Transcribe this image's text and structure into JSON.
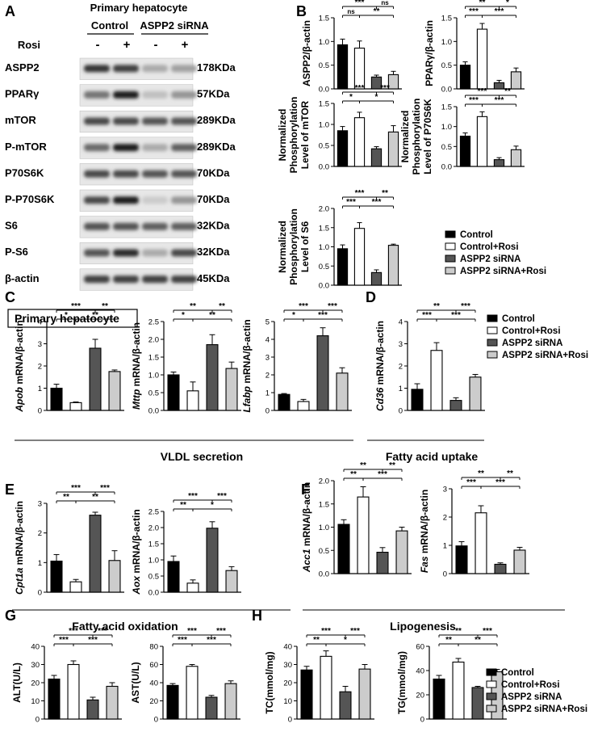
{
  "panels": {
    "A": "A",
    "B": "B",
    "C": "C",
    "D": "D",
    "E": "E",
    "F": "F",
    "G": "G",
    "H": "H"
  },
  "colors": {
    "control": "#000000",
    "control_rosi": "#ffffff",
    "siRNA": "#555555",
    "siRNA_rosi": "#cccccc"
  },
  "legend": [
    "Control",
    "Control+Rosi",
    "ASPP2 siRNA",
    "ASPP2 siRNA+Rosi"
  ],
  "blot": {
    "title": "Primary hepatocyte",
    "groups": [
      "Control",
      "ASPP2 siRNA"
    ],
    "rosi_label": "Rosi",
    "rosi_signs": [
      "-",
      "+",
      "-",
      "+"
    ],
    "rows": [
      {
        "name": "ASPP2",
        "size": "178KDa",
        "intensity": [
          0.85,
          0.8,
          0.3,
          0.35
        ]
      },
      {
        "name": "PPARγ",
        "size": "57KDa",
        "intensity": [
          0.55,
          0.95,
          0.2,
          0.4
        ]
      },
      {
        "name": "mTOR",
        "size": "289KDa",
        "intensity": [
          0.75,
          0.75,
          0.7,
          0.7
        ]
      },
      {
        "name": "P-mTOR",
        "size": "289KDa",
        "intensity": [
          0.6,
          0.95,
          0.3,
          0.65
        ]
      },
      {
        "name": "P70S6K",
        "size": "70KDa",
        "intensity": [
          0.75,
          0.75,
          0.7,
          0.7
        ]
      },
      {
        "name": "P-P70S6K",
        "size": "70KDa",
        "intensity": [
          0.75,
          0.95,
          0.15,
          0.4
        ]
      },
      {
        "name": "S6",
        "size": "32KDa",
        "intensity": [
          0.7,
          0.7,
          0.65,
          0.65
        ]
      },
      {
        "name": "P-S6",
        "size": "32KDa",
        "intensity": [
          0.7,
          0.9,
          0.3,
          0.75
        ]
      },
      {
        "name": "β-actin",
        "size": "45KDa",
        "intensity": [
          0.8,
          0.8,
          0.8,
          0.8
        ]
      }
    ]
  },
  "section_titles": {
    "C_box": "Primary hepatocyte",
    "vldl": "VLDL secretion",
    "uptake": "Fatty acid uptake",
    "oxidation": "Fatty acid oxidation",
    "lipogenesis": "Lipogenesis"
  },
  "chart_data": [
    {
      "id": "B1",
      "type": "bar",
      "ylabel": "ASPP2/β-actin",
      "ylim": [
        0,
        1.5
      ],
      "ticks": [
        "0.0",
        "0.5",
        "1.0",
        "1.5"
      ],
      "tickvals": [
        0,
        0.5,
        1.0,
        1.5
      ],
      "values": [
        0.93,
        0.86,
        0.25,
        0.3
      ],
      "errors": [
        0.12,
        0.15,
        0.04,
        0.07
      ],
      "sig": [
        [
          "***",
          "ns"
        ],
        [
          "ns",
          "**"
        ]
      ]
    },
    {
      "id": "B2",
      "type": "bar",
      "ylabel": "PPARγ/β-actin",
      "ylim": [
        0,
        1.5
      ],
      "ticks": [
        "0.0",
        "0.5",
        "1.0",
        "1.5"
      ],
      "tickvals": [
        0,
        0.5,
        1.0,
        1.5
      ],
      "values": [
        0.5,
        1.26,
        0.13,
        0.36
      ],
      "errors": [
        0.07,
        0.12,
        0.05,
        0.08
      ],
      "sig": [
        [
          "**",
          "*"
        ],
        [
          "***",
          "***"
        ]
      ]
    },
    {
      "id": "B3",
      "type": "bar",
      "ylabel": "Normalized Phosphorylation Level of mTOR",
      "ylim": [
        0,
        1.5
      ],
      "ticks": [
        "0.0",
        "0.5",
        "1.0",
        "1.5"
      ],
      "tickvals": [
        0,
        0.5,
        1.0,
        1.5
      ],
      "values": [
        0.85,
        1.16,
        0.42,
        0.82
      ],
      "errors": [
        0.1,
        0.13,
        0.05,
        0.15
      ],
      "sig": [
        [
          "***",
          "***"
        ],
        [
          "*",
          "*"
        ]
      ]
    },
    {
      "id": "B4",
      "type": "bar",
      "ylabel": "Normalized Phosphorylation Level of P70S6K",
      "ylim": [
        0,
        1.5
      ],
      "ticks": [
        "0.0",
        "0.5",
        "1.0",
        "1.5"
      ],
      "tickvals": [
        0,
        0.5,
        1.0,
        1.5
      ],
      "values": [
        0.76,
        1.25,
        0.17,
        0.42
      ],
      "errors": [
        0.08,
        0.12,
        0.05,
        0.09
      ],
      "sig": [
        [
          "***",
          "**"
        ],
        [
          "***",
          "***"
        ]
      ]
    },
    {
      "id": "B5",
      "type": "bar",
      "ylabel": "Normalized Phosphorylation Level of S6",
      "ylim": [
        0,
        2.0
      ],
      "ticks": [
        "0.0",
        "0.5",
        "1.0",
        "1.5",
        "2.0"
      ],
      "tickvals": [
        0,
        0.5,
        1.0,
        1.5,
        2.0
      ],
      "values": [
        0.95,
        1.48,
        0.33,
        1.04
      ],
      "errors": [
        0.1,
        0.15,
        0.07,
        0.03
      ],
      "sig": [
        [
          "***",
          "**"
        ],
        [
          "***",
          "***"
        ]
      ]
    },
    {
      "id": "C1",
      "type": "bar",
      "ylabel_italic": "Apob",
      "ylabel_rest": " mRNA/β-actin",
      "ylim": [
        0,
        4
      ],
      "ticks": [
        "0",
        "1",
        "2",
        "3",
        "4"
      ],
      "tickvals": [
        0,
        1,
        2,
        3,
        4
      ],
      "values": [
        1.0,
        0.35,
        2.8,
        1.75
      ],
      "errors": [
        0.18,
        0.03,
        0.4,
        0.07
      ],
      "sig": [
        [
          "***",
          "**"
        ],
        [
          "*",
          "**"
        ]
      ]
    },
    {
      "id": "C2",
      "type": "bar",
      "ylabel_italic": "Mttp",
      "ylabel_rest": " mRNA/β-actin",
      "ylim": [
        0,
        2.5
      ],
      "ticks": [
        "0.0",
        "0.5",
        "1.0",
        "1.5",
        "2.0",
        "2.5"
      ],
      "tickvals": [
        0,
        0.5,
        1.0,
        1.5,
        2.0,
        2.5
      ],
      "values": [
        1.0,
        0.55,
        1.85,
        1.18
      ],
      "errors": [
        0.08,
        0.25,
        0.28,
        0.18
      ],
      "sig": [
        [
          "**",
          "**"
        ],
        [
          "*",
          "**"
        ]
      ]
    },
    {
      "id": "C3",
      "type": "bar",
      "ylabel_italic": "Lfabp",
      "ylabel_rest": " mRNA/β-actin",
      "ylim": [
        0,
        5
      ],
      "ticks": [
        "0",
        "1",
        "2",
        "3",
        "4",
        "5"
      ],
      "tickvals": [
        0,
        1,
        2,
        3,
        4,
        5
      ],
      "values": [
        0.9,
        0.5,
        4.2,
        2.1
      ],
      "errors": [
        0.05,
        0.12,
        0.45,
        0.3
      ],
      "sig": [
        [
          "***",
          "***"
        ],
        [
          "*",
          "***"
        ]
      ]
    },
    {
      "id": "D1",
      "type": "bar",
      "ylabel_italic": "Cd36",
      "ylabel_rest": " mRNA/β-actin",
      "ylim": [
        0,
        4
      ],
      "ticks": [
        "0",
        "1",
        "2",
        "3",
        "4"
      ],
      "tickvals": [
        0,
        1,
        2,
        3,
        4
      ],
      "values": [
        0.95,
        2.7,
        0.45,
        1.5
      ],
      "errors": [
        0.25,
        0.35,
        0.12,
        0.12
      ],
      "sig": [
        [
          "**",
          "***"
        ],
        [
          "***",
          "***"
        ]
      ]
    },
    {
      "id": "E1",
      "type": "bar",
      "ylabel_italic": "Cpt1a",
      "ylabel_rest": " mRNA/β-actin",
      "ylim": [
        0,
        3
      ],
      "ticks": [
        "0",
        "1",
        "2",
        "3"
      ],
      "tickvals": [
        0,
        1,
        2,
        3
      ],
      "values": [
        1.05,
        0.35,
        2.6,
        1.07
      ],
      "errors": [
        0.22,
        0.08,
        0.1,
        0.33
      ],
      "sig": [
        [
          "***",
          "***"
        ],
        [
          "**",
          "**"
        ]
      ]
    },
    {
      "id": "E2",
      "type": "bar",
      "ylabel_italic": "Aox",
      "ylabel_rest": " mRNA/β-actin",
      "ylim": [
        0,
        2.5
      ],
      "ticks": [
        "0.0",
        "0.5",
        "1.0",
        "1.5",
        "2.0",
        "2.5"
      ],
      "tickvals": [
        0,
        0.5,
        1.0,
        1.5,
        2.0,
        2.5
      ],
      "values": [
        0.95,
        0.28,
        1.98,
        0.67
      ],
      "errors": [
        0.17,
        0.1,
        0.2,
        0.12
      ],
      "sig": [
        [
          "***",
          "***"
        ],
        [
          "**",
          "*"
        ]
      ]
    },
    {
      "id": "F1",
      "type": "bar",
      "ylabel_italic": "Acc1",
      "ylabel_rest": " mRNA/β-actin",
      "ylim": [
        0,
        2.0
      ],
      "ticks": [
        "0.0",
        "0.5",
        "1.0",
        "1.5",
        "2.0"
      ],
      "tickvals": [
        0,
        0.5,
        1.0,
        1.5,
        2.0
      ],
      "values": [
        1.06,
        1.65,
        0.46,
        0.92
      ],
      "errors": [
        0.1,
        0.22,
        0.1,
        0.08
      ],
      "sig": [
        [
          "**",
          "**"
        ],
        [
          "**",
          "***"
        ]
      ]
    },
    {
      "id": "F2",
      "type": "bar",
      "ylabel_italic": "Fas",
      "ylabel_rest": " mRNA/β-actin",
      "ylim": [
        0,
        3
      ],
      "ticks": [
        "0",
        "1",
        "2",
        "3"
      ],
      "tickvals": [
        0,
        1,
        2,
        3
      ],
      "values": [
        0.98,
        2.15,
        0.33,
        0.83
      ],
      "errors": [
        0.15,
        0.25,
        0.05,
        0.1
      ],
      "sig": [
        [
          "**",
          "**"
        ],
        [
          "***",
          "***"
        ]
      ]
    },
    {
      "id": "G1",
      "type": "bar",
      "ylabel": "ALT(U/L)",
      "ylim": [
        0,
        40
      ],
      "ticks": [
        "0",
        "10",
        "20",
        "30",
        "40"
      ],
      "tickvals": [
        0,
        10,
        20,
        30,
        40
      ],
      "values": [
        22,
        30,
        10.5,
        18
      ],
      "errors": [
        2,
        2,
        1.5,
        2
      ],
      "sig": [
        [
          "***",
          "***"
        ],
        [
          "***",
          "***"
        ]
      ]
    },
    {
      "id": "G2",
      "type": "bar",
      "ylabel": "AST(U/L)",
      "ylim": [
        0,
        80
      ],
      "ticks": [
        "0",
        "20",
        "40",
        "60",
        "80"
      ],
      "tickvals": [
        0,
        20,
        40,
        60,
        80
      ],
      "values": [
        37,
        58,
        24,
        39
      ],
      "errors": [
        2,
        2,
        2,
        3
      ],
      "sig": [
        [
          "***",
          "***"
        ],
        [
          "***",
          "***"
        ]
      ]
    },
    {
      "id": "H1",
      "type": "bar",
      "ylabel": "TC(mmol/mg)",
      "ylim": [
        0,
        40
      ],
      "ticks": [
        "0",
        "10",
        "20",
        "30",
        "40"
      ],
      "tickvals": [
        0,
        10,
        20,
        30,
        40
      ],
      "values": [
        27,
        34.5,
        15,
        27.5
      ],
      "errors": [
        2,
        3,
        3,
        2.5
      ],
      "sig": [
        [
          "***",
          "***"
        ],
        [
          "**",
          "*"
        ]
      ]
    },
    {
      "id": "H2",
      "type": "bar",
      "ylabel": "TG(mmol/mg)",
      "ylim": [
        0,
        60
      ],
      "ticks": [
        "0",
        "20",
        "40",
        "60"
      ],
      "tickvals": [
        0,
        20,
        40,
        60
      ],
      "values": [
        33,
        47,
        26,
        39
      ],
      "errors": [
        3,
        3,
        1,
        2
      ],
      "sig": [
        [
          "**",
          "***"
        ],
        [
          "**",
          "**"
        ]
      ]
    }
  ]
}
